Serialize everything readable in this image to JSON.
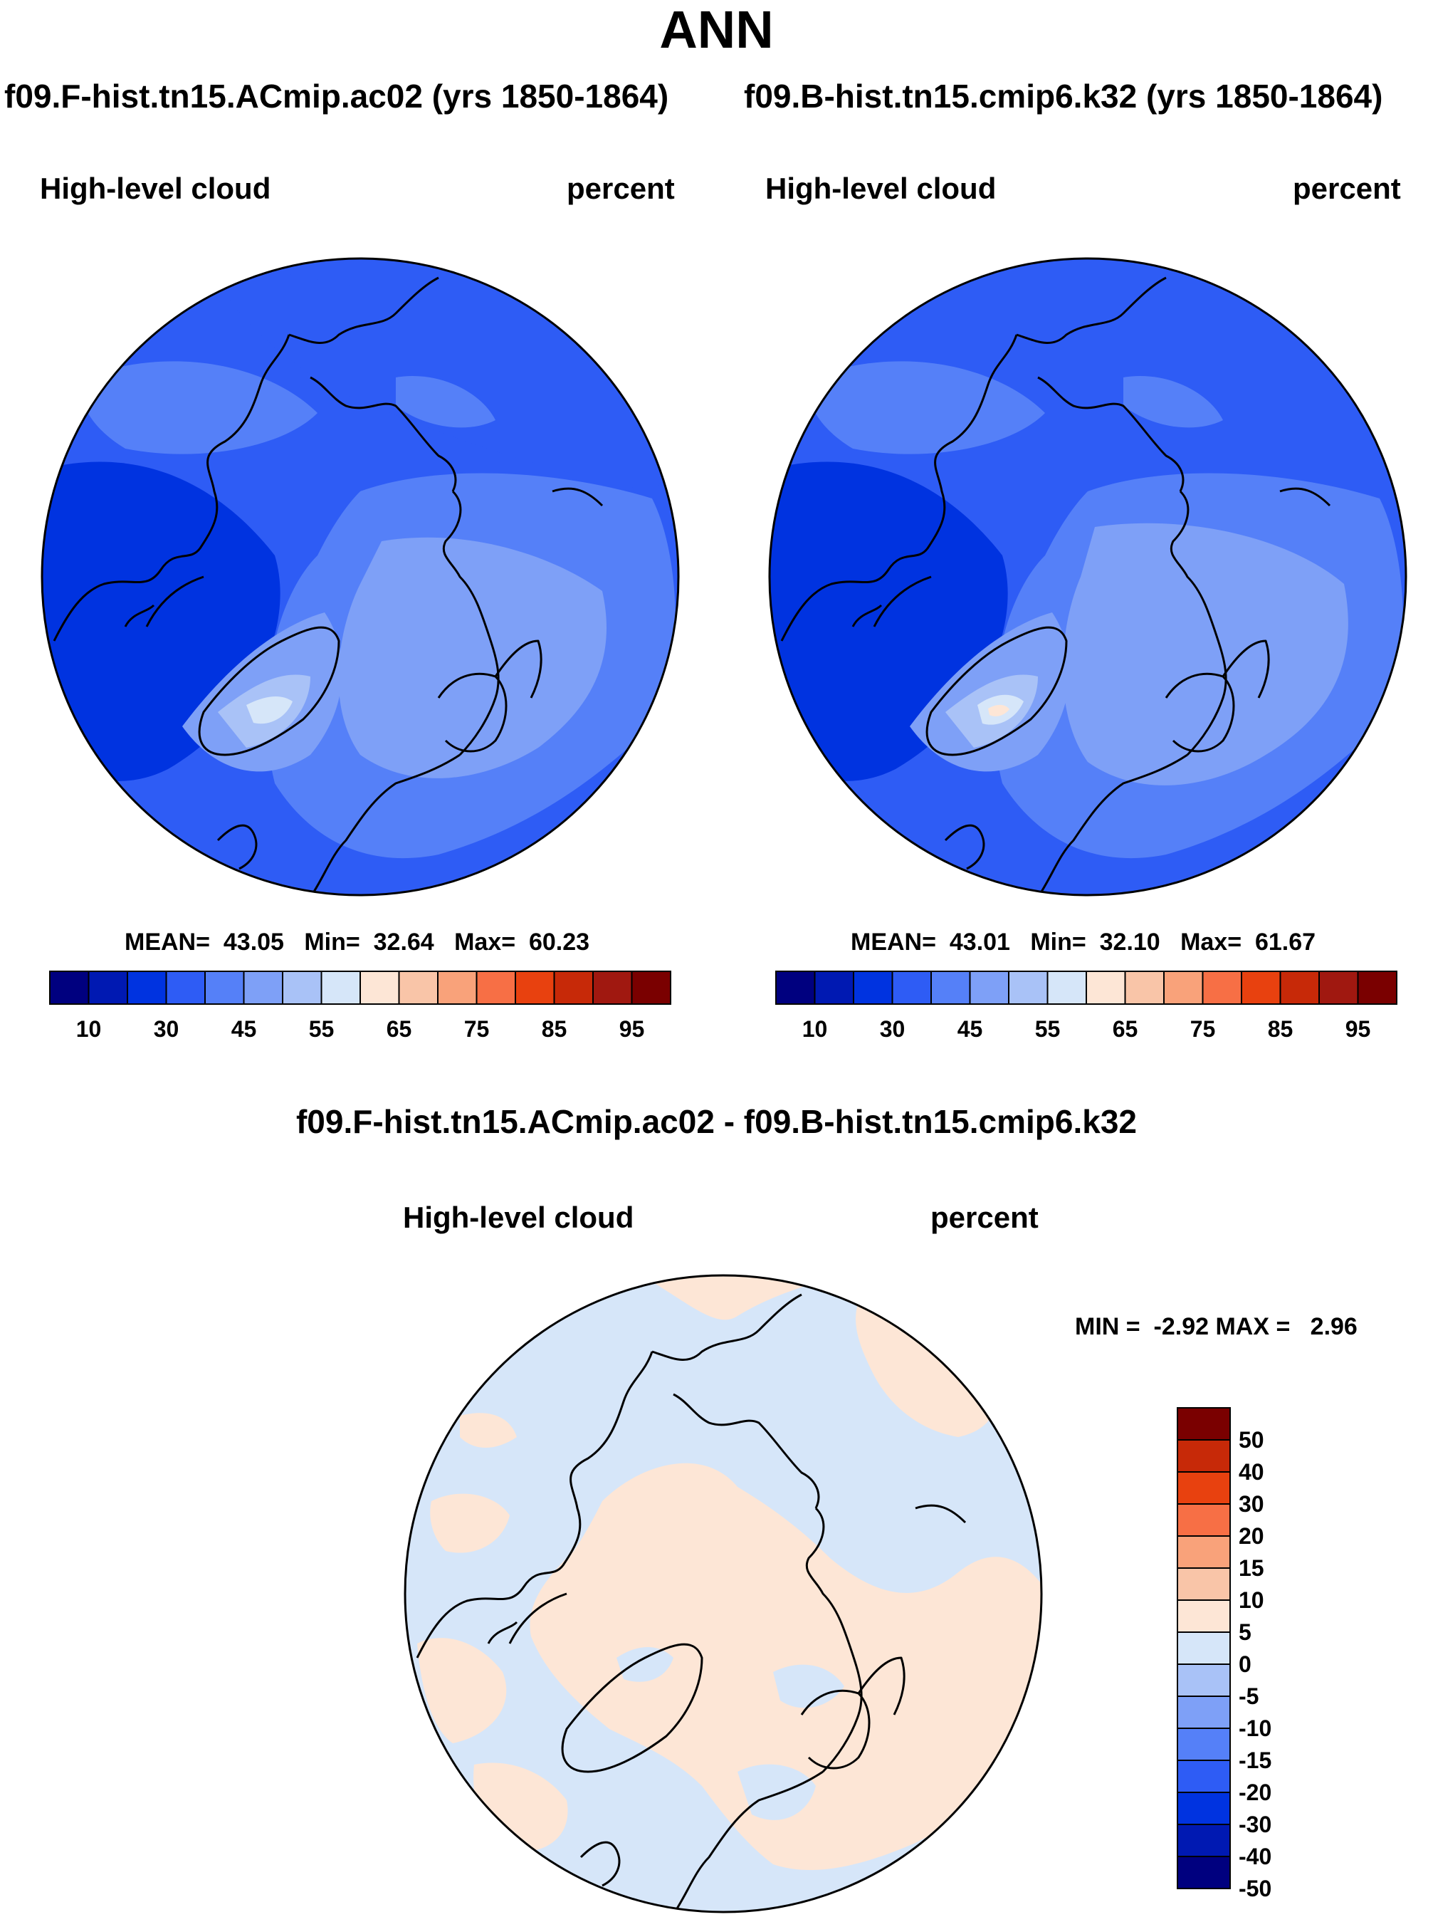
{
  "title": "ANN",
  "colors": {
    "land_outline": "#000000",
    "abs_scale": [
      "#00007f",
      "#0019b2",
      "#0033e0",
      "#2e5cf5",
      "#5580f8",
      "#7ea0f7",
      "#a9c2f7",
      "#d6e6f9",
      "#fde6d6",
      "#f9c5a8",
      "#f9a27a",
      "#f76f45",
      "#e8410f",
      "#c72908",
      "#a01810",
      "#7a0000"
    ],
    "diff_scale": [
      "#00007f",
      "#0019b2",
      "#0033e0",
      "#2e5cf5",
      "#5580f8",
      "#7ea0f7",
      "#a9c2f7",
      "#d6e6f9",
      "#fde6d6",
      "#f9c5a8",
      "#f9a27a",
      "#f76f45",
      "#e8410f",
      "#c72908",
      "#7a0000"
    ]
  },
  "panels": [
    {
      "run": "f09.F-hist.tn15.ACmip.ac02 (yrs 1850-1864)",
      "variable": "High-level cloud",
      "units": "percent",
      "stats": {
        "mean_label": "MEAN=",
        "mean": "43.05",
        "min_label": "Min=",
        "min": "32.64",
        "max_label": "Max=",
        "max": "60.23"
      }
    },
    {
      "run": "f09.B-hist.tn15.cmip6.k32 (yrs 1850-1864)",
      "variable": "High-level cloud",
      "units": "percent",
      "stats": {
        "mean_label": "MEAN=",
        "mean": "43.01",
        "min_label": "Min=",
        "min": "32.10",
        "max_label": "Max=",
        "max": "61.67"
      }
    }
  ],
  "abs_colorbar_labels": [
    "10",
    "30",
    "45",
    "55",
    "65",
    "75",
    "85",
    "95"
  ],
  "diff": {
    "title": "f09.F-hist.tn15.ACmip.ac02 - f09.B-hist.tn15.cmip6.k32",
    "variable": "High-level cloud",
    "units": "percent",
    "minmax": "MIN =  -2.92 MAX =   2.96",
    "colorbar_labels": [
      "50",
      "40",
      "30",
      "20",
      "15",
      "10",
      "5",
      "0",
      "-5",
      "-10",
      "-15",
      "-20",
      "-30",
      "-40",
      "-50"
    ]
  }
}
